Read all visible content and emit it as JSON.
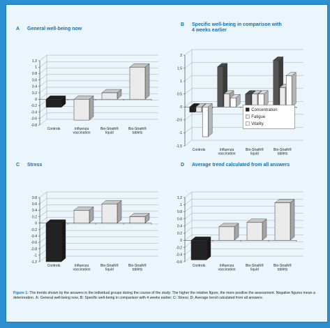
{
  "caption": {
    "lead": "Figure 1:",
    "intro": "The trends shown by the answers in the individual groups during the course of the study. The higher the relative figure, the more positive the assessment. Negative figures mean a deterioration.",
    "keys": [
      {
        "letter": "A:",
        "text": "General well-being now,"
      },
      {
        "letter": "B:",
        "text": "Specific well-being in comparison with 4 weeks earlier;"
      },
      {
        "letter": "C:",
        "text": "Stress;"
      },
      {
        "letter": "D:",
        "text": "Average trend calculated from all answers."
      }
    ]
  },
  "colors": {
    "accent": "#1a6fa8",
    "black_bar": "#222222",
    "dark_bar": "#555555",
    "light_bar": "#eaeaea",
    "white_bar": "#ffffff"
  },
  "chart_data": [
    {
      "id": "A",
      "letter": "A",
      "title": [
        "General well-being now"
      ],
      "type": "bar",
      "categories": [
        [
          "Controls"
        ],
        [
          "Influenza",
          "vaccination"
        ],
        [
          "Bio-Strath®",
          "liquid"
        ],
        [
          "Bio-Strath®",
          "tablets"
        ]
      ],
      "yticks": [
        "1.2",
        "1",
        "0.8",
        "0.6",
        "0.4",
        "0.2",
        "0",
        "-0.2",
        "-0.4",
        "-0.6",
        "-0.8"
      ],
      "ylim": [
        -0.8,
        1.2
      ],
      "series": [
        {
          "values": [
            -0.25,
            -0.65,
            0.2,
            1.0
          ],
          "first_bar_black": true
        }
      ]
    },
    {
      "id": "B",
      "letter": "B",
      "title": [
        "Specific well-being in comparison with",
        "4 weeks earlier"
      ],
      "type": "bar",
      "categories": [
        [
          "Controls"
        ],
        [
          "Influenza",
          "vaccination"
        ],
        [
          "Bio-Strath®",
          "liquid"
        ],
        [
          "Bio-Strath®",
          "tablets"
        ]
      ],
      "yticks": [
        "2",
        "1.5",
        "1",
        "0.5",
        "0",
        "-0.5",
        "-1",
        "-1.5"
      ],
      "ylim": [
        -1.5,
        2
      ],
      "legend": {
        "placement": "center-right"
      },
      "series": [
        {
          "name": "Concentration",
          "values": [
            -0.2,
            1.55,
            0.5,
            1.8
          ],
          "first_bar_black": true
        },
        {
          "name": "Fatigue",
          "values": [
            -0.2,
            0.5,
            0.5,
            0.75
          ]
        },
        {
          "name": "Vitality",
          "values": [
            -1.15,
            0.35,
            0.5,
            1.2
          ]
        }
      ]
    },
    {
      "id": "C",
      "letter": "C",
      "title": [
        "Stress"
      ],
      "type": "bar",
      "categories": [
        [
          "Controls"
        ],
        [
          "Influenza",
          "vaccination"
        ],
        [
          "Bio-Strath®",
          "liquid"
        ],
        [
          "Bio-Strath®",
          "tablets"
        ]
      ],
      "yticks": [
        "0.8",
        "0.6",
        "0.4",
        "0.2",
        "0",
        "-0.2",
        "-0.4",
        "-0.6",
        "-0.8",
        "-1",
        "-1.2"
      ],
      "ylim": [
        -1.2,
        0.8
      ],
      "series": [
        {
          "values": [
            -1.2,
            0.4,
            0.6,
            0.2
          ],
          "first_bar_black": true
        }
      ]
    },
    {
      "id": "D",
      "letter": "D",
      "title": [
        "Average trend calculated from all answers"
      ],
      "type": "bar",
      "categories": [
        [
          "Controls"
        ],
        [
          "Influenza",
          "vaccination"
        ],
        [
          "Bio-Strath®",
          "liquid"
        ],
        [
          "Bio-Strath®",
          "tablets"
        ]
      ],
      "yticks": [
        "1.2",
        "1",
        "0.8",
        "0.6",
        "0.4",
        "0.2",
        "0",
        "-0.2",
        "-0.4",
        "-0.6"
      ],
      "ylim": [
        -0.6,
        1.2
      ],
      "series": [
        {
          "values": [
            -0.55,
            0.38,
            0.5,
            1.05
          ],
          "first_bar_black": true
        }
      ]
    }
  ]
}
